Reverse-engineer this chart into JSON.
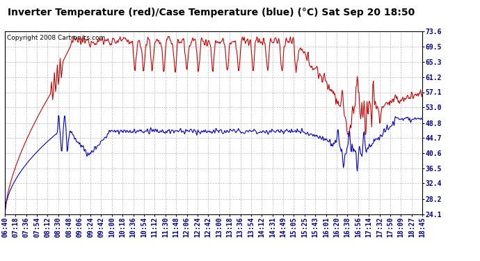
{
  "title": "Inverter Temperature (red)/Case Temperature (blue) (°C) Sat Sep 20 18:50",
  "copyright": "Copyright 2008 Cartronics.com",
  "y_ticks": [
    24.1,
    28.2,
    32.4,
    36.5,
    40.6,
    44.7,
    48.8,
    53.0,
    57.1,
    61.2,
    65.3,
    69.5,
    73.6
  ],
  "x_tick_labels": [
    "06:40",
    "07:18",
    "07:36",
    "07:54",
    "08:12",
    "08:30",
    "08:48",
    "09:06",
    "09:24",
    "09:42",
    "10:00",
    "10:18",
    "10:36",
    "10:54",
    "11:12",
    "11:30",
    "11:48",
    "12:06",
    "12:24",
    "12:42",
    "13:00",
    "13:18",
    "13:36",
    "13:54",
    "14:12",
    "14:31",
    "14:49",
    "15:05",
    "15:25",
    "15:43",
    "16:01",
    "16:20",
    "16:38",
    "16:56",
    "17:14",
    "17:32",
    "17:50",
    "18:09",
    "18:27",
    "18:45"
  ],
  "y_min": 24.1,
  "y_max": 73.6,
  "bg_color": "#ffffff",
  "plot_bg_color": "#ffffff",
  "grid_color": "#aaaaaa",
  "red_color": "#cc0000",
  "blue_color": "#0000cc",
  "title_fontsize": 10,
  "copyright_fontsize": 6.5,
  "tick_fontsize": 7,
  "line_width": 0.8
}
